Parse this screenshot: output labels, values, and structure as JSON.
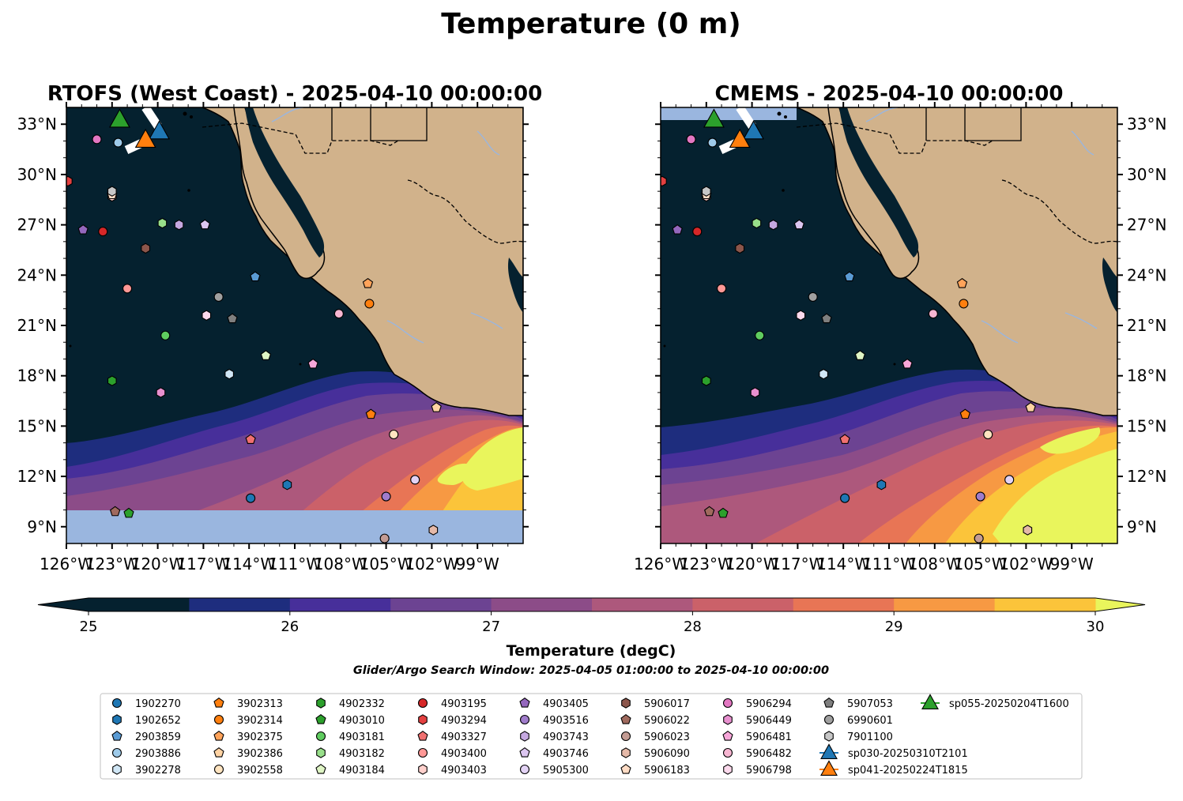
{
  "title": "Temperature (0 m)",
  "panels": [
    {
      "title": "RTOFS (West Coast) - 2025-04-10 00:00:00"
    },
    {
      "title": "CMEMS - 2025-04-10 00:00:00"
    }
  ],
  "colorbar": {
    "label": "Temperature (degC)",
    "ticks": [
      "25",
      "26",
      "27",
      "28",
      "29",
      "30"
    ],
    "levels": [
      25,
      25.5,
      26,
      26.5,
      27,
      27.5,
      28,
      28.5,
      29,
      29.5,
      30
    ],
    "colors": [
      "#05212f",
      "#1e2d7e",
      "#472f9a",
      "#6c4392",
      "#8c4c88",
      "#ad587c",
      "#cb6169",
      "#e87555",
      "#f79943",
      "#fbc43a"
    ],
    "under_color": "#05212f",
    "over_color": "#e9f55c"
  },
  "search_window": "Glider/Argo Search Window: 2025-04-05 01:00:00 to 2025-04-10 00:00:00",
  "land_color": "#d1b28b",
  "no_data_color": "#9ab6df",
  "chart_data": {
    "type": "map",
    "variable": "Temperature",
    "depth": "0 m",
    "units": "degC",
    "lon_range": [
      -126,
      -96
    ],
    "lat_range": [
      8,
      34
    ],
    "lat_ticks": [
      "33°N",
      "30°N",
      "27°N",
      "24°N",
      "21°N",
      "18°N",
      "15°N",
      "12°N",
      "9°N"
    ],
    "lon_ticks": [
      "126°W",
      "123°W",
      "120°W",
      "117°W",
      "114°W",
      "111°W",
      "108°W",
      "105°W",
      "102°W",
      "99°W"
    ],
    "lat_tick_values": [
      33,
      30,
      27,
      24,
      21,
      18,
      15,
      12,
      9
    ],
    "lon_tick_values": [
      -126,
      -123,
      -120,
      -117,
      -114,
      -111,
      -108,
      -105,
      -102,
      -99
    ],
    "profiles": [
      {
        "name": "1902270",
        "lon": -113.9,
        "lat": 10.7,
        "marker": "circle",
        "color": "#1f77b4"
      },
      {
        "name": "1902652",
        "lon": -111.5,
        "lat": 11.5,
        "marker": "hexagon",
        "color": "#1f77b4"
      },
      {
        "name": "2903859",
        "lon": -113.6,
        "lat": 23.9,
        "marker": "pentagon",
        "color": "#5a9bd4"
      },
      {
        "name": "2903886",
        "lon": -122.6,
        "lat": 31.9,
        "marker": "circle",
        "color": "#9ecae9"
      },
      {
        "name": "3902278",
        "lon": -115.3,
        "lat": 18.1,
        "marker": "hexagon",
        "color": "#d0e6f5"
      },
      {
        "name": "3902313",
        "lon": -106.0,
        "lat": 15.7,
        "marker": "pentagon",
        "color": "#ff7f0e"
      },
      {
        "name": "3902314",
        "lon": -106.1,
        "lat": 22.3,
        "marker": "circle",
        "color": "#ff7f0e"
      },
      {
        "name": "3902375",
        "lon": -106.2,
        "lat": 23.5,
        "marker": "pentagon",
        "color": "#ffa35a"
      },
      {
        "name": "3902386",
        "lon": -101.7,
        "lat": 16.1,
        "marker": "pentagon",
        "color": "#ffd3a3"
      },
      {
        "name": "3902558",
        "lon": -104.5,
        "lat": 14.5,
        "marker": "circle",
        "color": "#ffe4c0"
      },
      {
        "name": "4902332",
        "lon": -123.0,
        "lat": 17.7,
        "marker": "hexagon",
        "color": "#2ca02c"
      },
      {
        "name": "4903010",
        "lon": -121.9,
        "lat": 9.8,
        "marker": "pentagon",
        "color": "#2ca02c"
      },
      {
        "name": "4903181",
        "lon": -119.5,
        "lat": 20.4,
        "marker": "circle",
        "color": "#5fcc5f"
      },
      {
        "name": "4903182",
        "lon": -119.7,
        "lat": 27.1,
        "marker": "hexagon",
        "color": "#98df8a"
      },
      {
        "name": "4903184",
        "lon": -112.9,
        "lat": 19.2,
        "marker": "pentagon",
        "color": "#dff5c5"
      },
      {
        "name": "4903195",
        "lon": -123.6,
        "lat": 26.6,
        "marker": "circle",
        "color": "#d62728"
      },
      {
        "name": "4903294",
        "lon": -125.9,
        "lat": 29.6,
        "marker": "hexagon",
        "color": "#e34040"
      },
      {
        "name": "4903327",
        "lon": -113.9,
        "lat": 14.2,
        "marker": "pentagon",
        "color": "#f07070"
      },
      {
        "name": "4903400",
        "lon": -122.0,
        "lat": 23.2,
        "marker": "circle",
        "color": "#ff9896"
      },
      {
        "name": "4903403",
        "lon": -123.0,
        "lat": 28.7,
        "marker": "hexagon",
        "color": "#ffd0cc"
      },
      {
        "name": "4903405",
        "lon": -124.9,
        "lat": 26.7,
        "marker": "pentagon",
        "color": "#9467bd"
      },
      {
        "name": "4903516",
        "lon": -105.0,
        "lat": 10.8,
        "marker": "circle",
        "color": "#a07ccb"
      },
      {
        "name": "4903743",
        "lon": -118.6,
        "lat": 27.0,
        "marker": "hexagon",
        "color": "#c5a8e0"
      },
      {
        "name": "4903746",
        "lon": -116.9,
        "lat": 27.0,
        "marker": "pentagon",
        "color": "#dcc6f0"
      },
      {
        "name": "5905300",
        "lon": -103.1,
        "lat": 11.8,
        "marker": "circle",
        "color": "#e3d3f5"
      },
      {
        "name": "5906017",
        "lon": -120.8,
        "lat": 25.6,
        "marker": "hexagon",
        "color": "#8c564b"
      },
      {
        "name": "5906022",
        "lon": -122.8,
        "lat": 9.9,
        "marker": "pentagon",
        "color": "#a06a5e"
      },
      {
        "name": "5906023",
        "lon": -105.1,
        "lat": 8.3,
        "marker": "circle",
        "color": "#c49c94"
      },
      {
        "name": "5906090",
        "lon": -101.9,
        "lat": 8.8,
        "marker": "hexagon",
        "color": "#e5b9a8"
      },
      {
        "name": "5906183",
        "lon": -123.0,
        "lat": 28.8,
        "marker": "pentagon",
        "color": "#ffdcc5"
      },
      {
        "name": "5906294",
        "lon": -124.0,
        "lat": 32.1,
        "marker": "circle",
        "color": "#e377c2"
      },
      {
        "name": "5906449",
        "lon": -119.8,
        "lat": 17.0,
        "marker": "hexagon",
        "color": "#e890cf"
      },
      {
        "name": "5906481",
        "lon": -109.8,
        "lat": 18.7,
        "marker": "pentagon",
        "color": "#f7a6d9"
      },
      {
        "name": "5906482",
        "lon": -108.1,
        "lat": 21.7,
        "marker": "circle",
        "color": "#f7b6d2"
      },
      {
        "name": "5906798",
        "lon": -116.8,
        "lat": 21.6,
        "marker": "hexagon",
        "color": "#fcd9ec"
      },
      {
        "name": "5907053",
        "lon": -115.1,
        "lat": 21.4,
        "marker": "pentagon",
        "color": "#7f7f7f"
      },
      {
        "name": "6990601",
        "lon": -116.0,
        "lat": 22.7,
        "marker": "circle",
        "color": "#a0a0a0"
      },
      {
        "name": "7901100",
        "lon": -123.0,
        "lat": 29.0,
        "marker": "hexagon",
        "color": "#c7c7c7"
      }
    ],
    "gliders": [
      {
        "name": "sp030-20250310T2101",
        "lon": -119.9,
        "lat": 32.5,
        "color": "#1f77b4"
      },
      {
        "name": "sp041-20250224T1815",
        "lon": -120.8,
        "lat": 32.0,
        "color": "#ff7f0e"
      },
      {
        "name": "sp055-20250204T1600",
        "lon": -122.5,
        "lat": 33.2,
        "color": "#2ca02c"
      }
    ]
  }
}
